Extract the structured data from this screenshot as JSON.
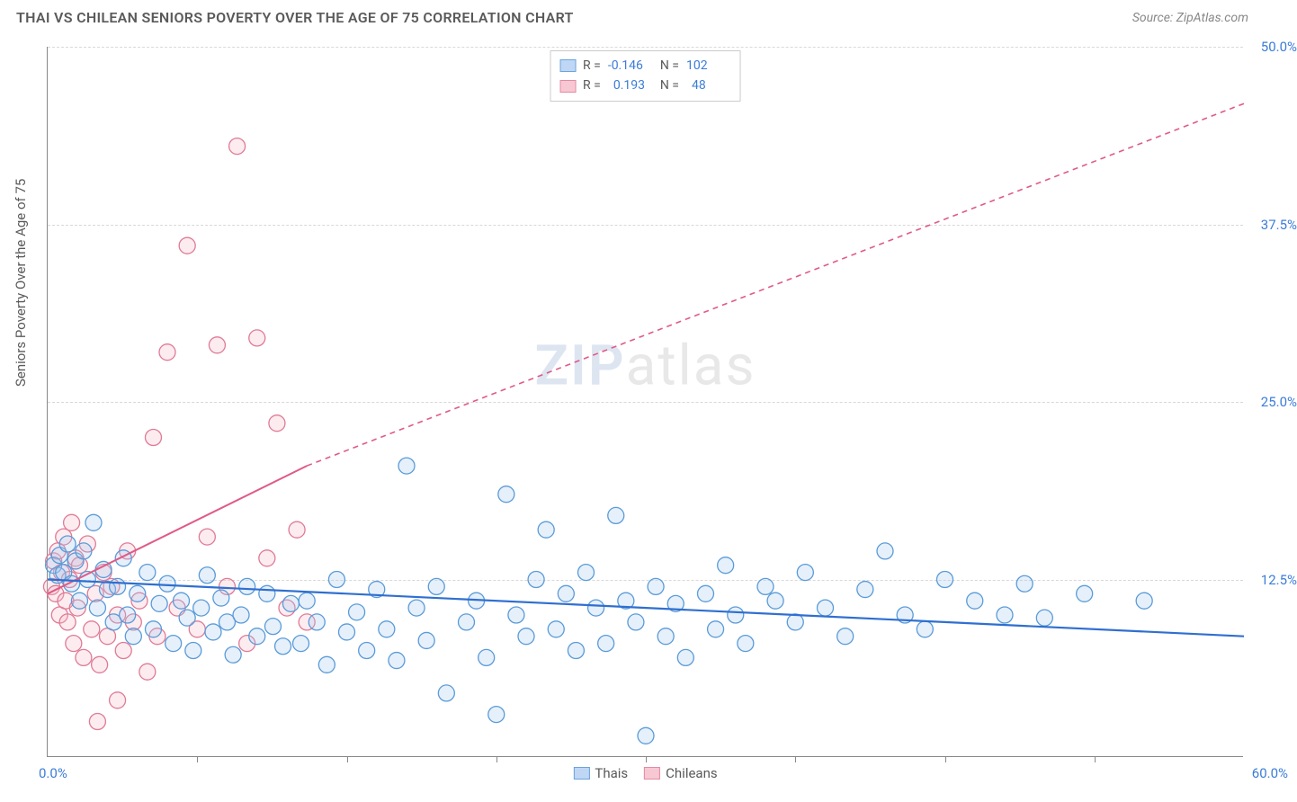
{
  "header": {
    "title": "THAI VS CHILEAN SENIORS POVERTY OVER THE AGE OF 75 CORRELATION CHART",
    "source_label": "Source: ZipAtlas.com"
  },
  "chart": {
    "type": "scatter",
    "y_axis_label": "Seniors Poverty Over the Age of 75",
    "xlim": [
      0,
      60
    ],
    "ylim": [
      0,
      50
    ],
    "x_origin_label": "0.0%",
    "x_end_label": "60.0%",
    "y_ticks": [
      {
        "value": 12.5,
        "label": "12.5%"
      },
      {
        "value": 25.0,
        "label": "25.0%"
      },
      {
        "value": 37.5,
        "label": "37.5%"
      },
      {
        "value": 50.0,
        "label": "50.0%"
      }
    ],
    "x_tick_positions": [
      7.5,
      15,
      22.5,
      30,
      37.5,
      45,
      52.5
    ],
    "grid_color": "#d8d8d8",
    "axis_color": "#888888",
    "background_color": "#ffffff",
    "tick_label_color": "#3b7dd8",
    "tick_label_fontsize": 15,
    "axis_label_fontsize": 15,
    "marker_radius": 9,
    "marker_stroke_width": 1.3,
    "marker_fill_opacity": 0.28,
    "watermark": {
      "part1": "ZIP",
      "part2": "atlas"
    },
    "series": [
      {
        "name": "Thais",
        "color_fill": "#a6c8f0",
        "color_stroke": "#5a9bd8",
        "swatch_fill": "#bfd7f5",
        "swatch_border": "#6aa3de",
        "R": "-0.146",
        "N": "102",
        "trend": {
          "solid": {
            "x1": 0,
            "y1": 12.5,
            "x2": 60,
            "y2": 8.5
          },
          "dashed": null,
          "color": "#2f6fd0",
          "width": 2.2
        },
        "points": [
          [
            0.3,
            13.5
          ],
          [
            0.5,
            12.8
          ],
          [
            0.6,
            14.2
          ],
          [
            0.8,
            13.0
          ],
          [
            1.0,
            15.0
          ],
          [
            1.2,
            12.2
          ],
          [
            1.4,
            13.8
          ],
          [
            1.6,
            11.0
          ],
          [
            1.8,
            14.5
          ],
          [
            2.0,
            12.5
          ],
          [
            2.3,
            16.5
          ],
          [
            2.5,
            10.5
          ],
          [
            2.8,
            13.2
          ],
          [
            3.0,
            11.8
          ],
          [
            3.3,
            9.5
          ],
          [
            3.5,
            12.0
          ],
          [
            3.8,
            14.0
          ],
          [
            4.0,
            10.0
          ],
          [
            4.3,
            8.5
          ],
          [
            4.5,
            11.5
          ],
          [
            5.0,
            13.0
          ],
          [
            5.3,
            9.0
          ],
          [
            5.6,
            10.8
          ],
          [
            6.0,
            12.2
          ],
          [
            6.3,
            8.0
          ],
          [
            6.7,
            11.0
          ],
          [
            7.0,
            9.8
          ],
          [
            7.3,
            7.5
          ],
          [
            7.7,
            10.5
          ],
          [
            8.0,
            12.8
          ],
          [
            8.3,
            8.8
          ],
          [
            8.7,
            11.2
          ],
          [
            9.0,
            9.5
          ],
          [
            9.3,
            7.2
          ],
          [
            9.7,
            10.0
          ],
          [
            10.0,
            12.0
          ],
          [
            10.5,
            8.5
          ],
          [
            11.0,
            11.5
          ],
          [
            11.3,
            9.2
          ],
          [
            11.8,
            7.8
          ],
          [
            12.2,
            10.8
          ],
          [
            12.7,
            8.0
          ],
          [
            13.0,
            11.0
          ],
          [
            13.5,
            9.5
          ],
          [
            14.0,
            6.5
          ],
          [
            14.5,
            12.5
          ],
          [
            15.0,
            8.8
          ],
          [
            15.5,
            10.2
          ],
          [
            16.0,
            7.5
          ],
          [
            16.5,
            11.8
          ],
          [
            17.0,
            9.0
          ],
          [
            17.5,
            6.8
          ],
          [
            18.0,
            20.5
          ],
          [
            18.5,
            10.5
          ],
          [
            19.0,
            8.2
          ],
          [
            19.5,
            12.0
          ],
          [
            20.0,
            4.5
          ],
          [
            21.0,
            9.5
          ],
          [
            21.5,
            11.0
          ],
          [
            22.0,
            7.0
          ],
          [
            22.5,
            3.0
          ],
          [
            23.0,
            18.5
          ],
          [
            23.5,
            10.0
          ],
          [
            24.0,
            8.5
          ],
          [
            24.5,
            12.5
          ],
          [
            25.0,
            16.0
          ],
          [
            25.5,
            9.0
          ],
          [
            26.0,
            11.5
          ],
          [
            26.5,
            7.5
          ],
          [
            27.0,
            13.0
          ],
          [
            27.5,
            10.5
          ],
          [
            28.0,
            8.0
          ],
          [
            28.5,
            17.0
          ],
          [
            29.0,
            11.0
          ],
          [
            29.5,
            9.5
          ],
          [
            30.0,
            1.5
          ],
          [
            30.5,
            12.0
          ],
          [
            31.0,
            8.5
          ],
          [
            31.5,
            10.8
          ],
          [
            32.0,
            7.0
          ],
          [
            33.0,
            11.5
          ],
          [
            33.5,
            9.0
          ],
          [
            34.0,
            13.5
          ],
          [
            34.5,
            10.0
          ],
          [
            35.0,
            8.0
          ],
          [
            36.0,
            12.0
          ],
          [
            36.5,
            11.0
          ],
          [
            37.5,
            9.5
          ],
          [
            38.0,
            13.0
          ],
          [
            39.0,
            10.5
          ],
          [
            40.0,
            8.5
          ],
          [
            41.0,
            11.8
          ],
          [
            42.0,
            14.5
          ],
          [
            43.0,
            10.0
          ],
          [
            44.0,
            9.0
          ],
          [
            45.0,
            12.5
          ],
          [
            46.5,
            11.0
          ],
          [
            48.0,
            10.0
          ],
          [
            49.0,
            12.2
          ],
          [
            50.0,
            9.8
          ],
          [
            52.0,
            11.5
          ],
          [
            55.0,
            11.0
          ]
        ]
      },
      {
        "name": "Chileans",
        "color_fill": "#f5bcc8",
        "color_stroke": "#e07a95",
        "swatch_fill": "#f7c8d4",
        "swatch_border": "#e58aa0",
        "R": "0.193",
        "N": "48",
        "trend": {
          "solid": {
            "x1": 0,
            "y1": 11.5,
            "x2": 13,
            "y2": 20.5
          },
          "dashed": {
            "x1": 13,
            "y1": 20.5,
            "x2": 60,
            "y2": 46.0
          },
          "color": "#e05a85",
          "width": 2.0
        },
        "points": [
          [
            0.2,
            12.0
          ],
          [
            0.3,
            13.8
          ],
          [
            0.4,
            11.5
          ],
          [
            0.5,
            14.5
          ],
          [
            0.6,
            10.0
          ],
          [
            0.7,
            13.0
          ],
          [
            0.8,
            15.5
          ],
          [
            0.9,
            11.0
          ],
          [
            1.0,
            9.5
          ],
          [
            1.1,
            12.5
          ],
          [
            1.2,
            16.5
          ],
          [
            1.3,
            8.0
          ],
          [
            1.4,
            14.0
          ],
          [
            1.5,
            10.5
          ],
          [
            1.6,
            13.5
          ],
          [
            1.8,
            7.0
          ],
          [
            2.0,
            15.0
          ],
          [
            2.2,
            9.0
          ],
          [
            2.4,
            11.5
          ],
          [
            2.6,
            6.5
          ],
          [
            2.8,
            13.0
          ],
          [
            3.0,
            8.5
          ],
          [
            3.2,
            12.0
          ],
          [
            3.5,
            10.0
          ],
          [
            3.8,
            7.5
          ],
          [
            4.0,
            14.5
          ],
          [
            4.3,
            9.5
          ],
          [
            4.6,
            11.0
          ],
          [
            5.0,
            6.0
          ],
          [
            5.3,
            22.5
          ],
          [
            5.5,
            8.5
          ],
          [
            6.0,
            28.5
          ],
          [
            6.5,
            10.5
          ],
          [
            7.0,
            36.0
          ],
          [
            7.5,
            9.0
          ],
          [
            8.0,
            15.5
          ],
          [
            8.5,
            29.0
          ],
          [
            9.0,
            12.0
          ],
          [
            9.5,
            43.0
          ],
          [
            10.0,
            8.0
          ],
          [
            10.5,
            29.5
          ],
          [
            11.0,
            14.0
          ],
          [
            11.5,
            23.5
          ],
          [
            12.0,
            10.5
          ],
          [
            12.5,
            16.0
          ],
          [
            13.0,
            9.5
          ],
          [
            2.5,
            2.5
          ],
          [
            3.5,
            4.0
          ]
        ]
      }
    ],
    "bottom_legend": [
      "Thais",
      "Chileans"
    ]
  }
}
